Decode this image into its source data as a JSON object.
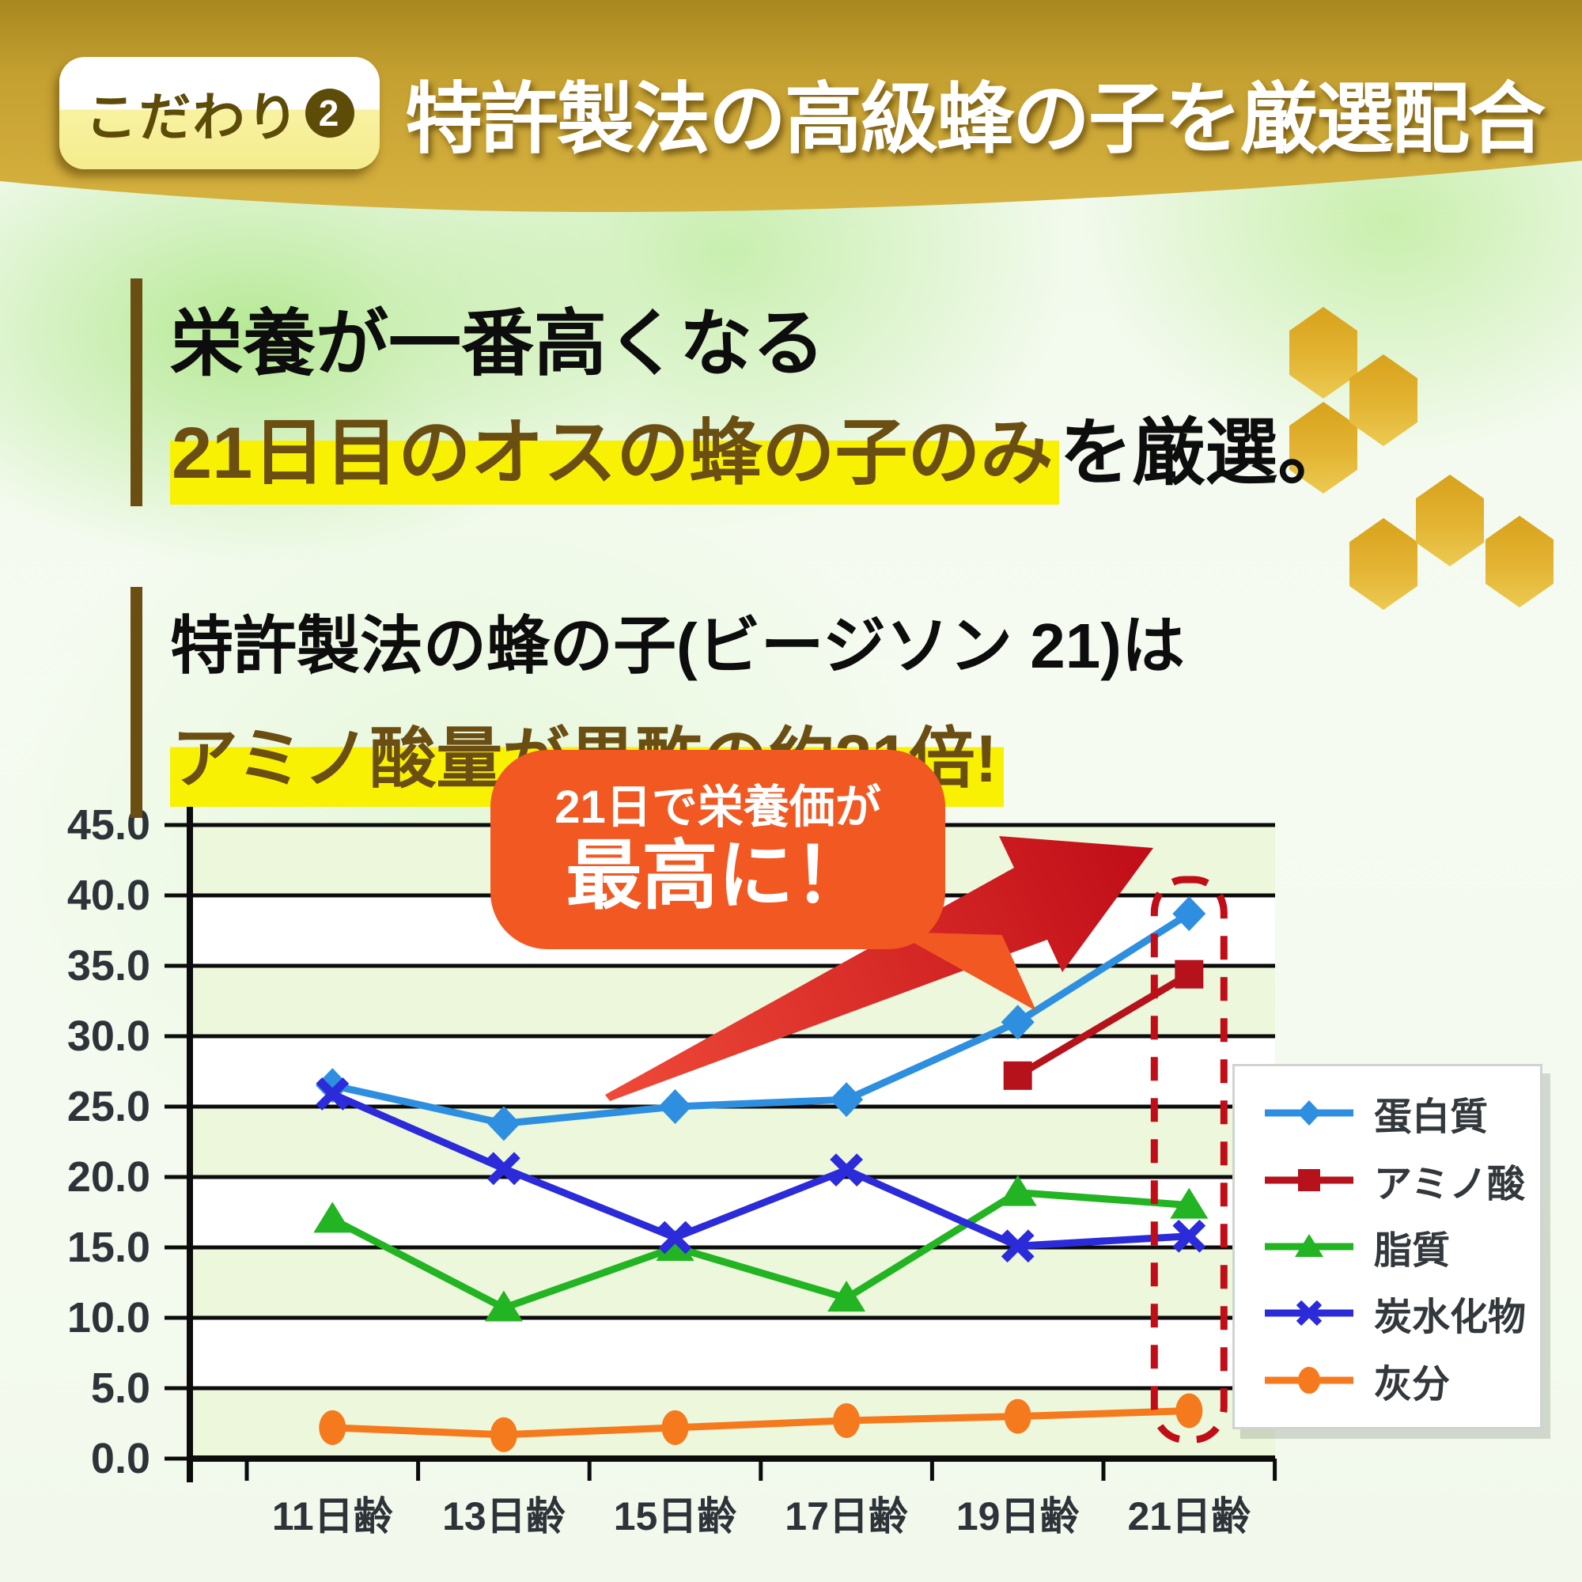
{
  "header": {
    "badge_label": "こだわり",
    "badge_number": "2",
    "title": "特許製法の高級蜂の子を厳選配合"
  },
  "statements": {
    "block1_line1": "栄養が一番高くなる",
    "block1_line2_highlight": "21日目のオスの蜂の子のみ",
    "block1_line2_rest": "を厳選。",
    "block2_line1": "特許製法の蜂の子(ビージソン 21)は",
    "block2_line2_highlight": "アミノ酸量が黒酢の約21倍!"
  },
  "callout": {
    "line1": "21日で栄養価が",
    "line2": "最高に！"
  },
  "colors": {
    "header_gold": "#c9a534",
    "badge_text": "#5d4b08",
    "highlight_yellow": "#f8f103",
    "highlight_text_brown": "#6b4e12",
    "bubble_orange": "#f15822",
    "arrow_red": "#c00d18",
    "dashed_box_red": "#c00d18",
    "band_green": "#edf7db",
    "axis_label": "#2d3338"
  },
  "chart_data": {
    "type": "line",
    "title": "",
    "xlabel": "",
    "ylabel": "",
    "categories": [
      "11日齢",
      "13日齢",
      "15日齢",
      "17日齢",
      "19日齢",
      "21日齢"
    ],
    "series": [
      {
        "name": "蛋白質",
        "marker": "diamond",
        "color": "#2e8fe0",
        "values": [
          26.5,
          23.8,
          25.0,
          25.5,
          31.0,
          38.7
        ]
      },
      {
        "name": "アミノ酸",
        "marker": "square",
        "color": "#b5121b",
        "values": [
          null,
          null,
          null,
          null,
          27.2,
          34.4
        ]
      },
      {
        "name": "脂質",
        "marker": "triangle",
        "color": "#22b422",
        "values": [
          17.0,
          10.7,
          15.0,
          11.4,
          18.9,
          18.0
        ]
      },
      {
        "name": "炭水化物",
        "marker": "x",
        "color": "#2b2bd9",
        "values": [
          25.9,
          20.6,
          15.7,
          20.5,
          15.1,
          15.8
        ]
      },
      {
        "name": "灰分",
        "marker": "circle",
        "color": "#f57a1e",
        "values": [
          2.2,
          1.7,
          2.2,
          2.7,
          3.0,
          3.4
        ]
      }
    ],
    "ylim": [
      0,
      45
    ],
    "ytick_step": 5,
    "ytick_labels": [
      "0.0",
      "5.0",
      "10.0",
      "15.0",
      "20.0",
      "25.0",
      "30.0",
      "35.0",
      "40.0",
      "45.0"
    ],
    "grid": true,
    "legend_position": "right",
    "highlight_category": "21日齢"
  }
}
